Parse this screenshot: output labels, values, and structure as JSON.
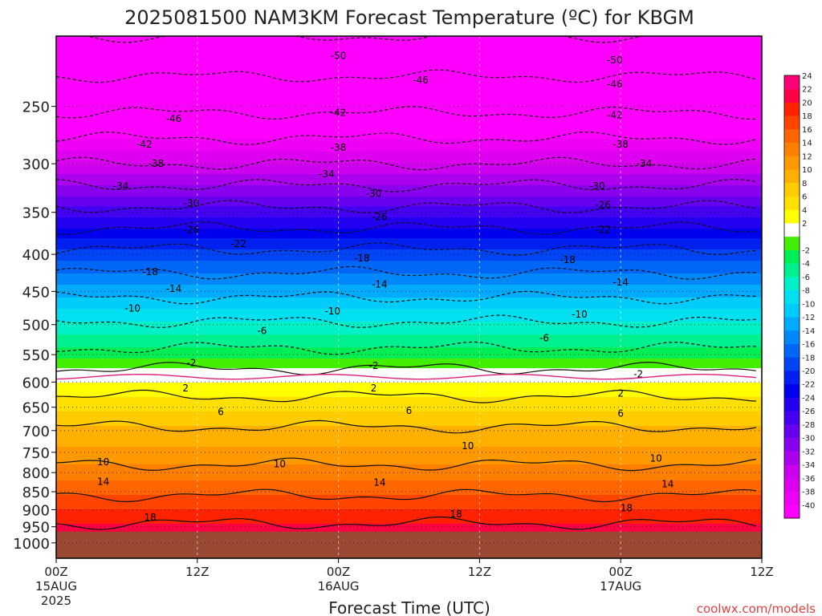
{
  "chart_data": {
    "type": "heatmap",
    "title": "2025081500 NAM3KM Forecast Temperature (ºC) for KBGM",
    "xlabel": "Forecast Time (UTC)",
    "x_ticks": [
      {
        "hours": 0,
        "label": "00Z",
        "date": "15AUG",
        "year": "2025"
      },
      {
        "hours": 12,
        "label": "12Z"
      },
      {
        "hours": 24,
        "label": "00Z",
        "date": "16AUG"
      },
      {
        "hours": 36,
        "label": "12Z"
      },
      {
        "hours": 48,
        "label": "00Z",
        "date": "17AUG"
      },
      {
        "hours": 60,
        "label": "12Z"
      }
    ],
    "xlim": [
      0,
      60
    ],
    "y_scale": "log-pressure",
    "ylim": [
      1050,
      200
    ],
    "y_ticks": [
      250,
      300,
      350,
      400,
      450,
      500,
      550,
      600,
      650,
      700,
      750,
      800,
      850,
      900,
      950,
      1000
    ],
    "surface_pressure": 965,
    "colorbar": {
      "levels": [
        -40,
        -38,
        -36,
        -34,
        -32,
        -30,
        -28,
        -26,
        -24,
        -22,
        -20,
        -18,
        -16,
        -14,
        -12,
        -10,
        -8,
        -6,
        -4,
        -2,
        0,
        2,
        4,
        6,
        8,
        10,
        12,
        14,
        16,
        18,
        20,
        22,
        24
      ],
      "labels": [
        "-40",
        "-38",
        "-36",
        "-34",
        "-32",
        "-30",
        "-28",
        "-26",
        "-24",
        "-22",
        "-20",
        "-18",
        "-16",
        "-14",
        "-12",
        "-10",
        "-8",
        "-6",
        "-4",
        "-2",
        "2",
        "4",
        "6",
        "8",
        "10",
        "12",
        "14",
        "16",
        "18",
        "20",
        "22",
        "24"
      ],
      "colors": [
        "#ff00ff",
        "#ee00f4",
        "#dd00f0",
        "#cc00ee",
        "#aa00ee",
        "#8800ee",
        "#6600ee",
        "#4400f0",
        "#2200f0",
        "#0000ee",
        "#0020f0",
        "#0044f4",
        "#0066f8",
        "#0088fa",
        "#00aafc",
        "#00ccfc",
        "#00e0f0",
        "#00f0c8",
        "#00f090",
        "#00ee55",
        "#44ee00",
        "#ffffff",
        "#ffff00",
        "#ffe000",
        "#ffcc00",
        "#ffb000",
        "#ff9900",
        "#ff8000",
        "#ff6600",
        "#ff4400",
        "#ff2200",
        "#ff0044",
        "#ff0077"
      ]
    },
    "temperature_profile": [
      {
        "p": 200,
        "t": -52
      },
      {
        "p": 250,
        "t": -45
      },
      {
        "p": 300,
        "t": -36
      },
      {
        "p": 350,
        "t": -27
      },
      {
        "p": 400,
        "t": -19
      },
      {
        "p": 450,
        "t": -13
      },
      {
        "p": 500,
        "t": -7.5
      },
      {
        "p": 550,
        "t": -3
      },
      {
        "p": 575,
        "t": 0
      },
      {
        "p": 600,
        "t": 2
      },
      {
        "p": 650,
        "t": 5.5
      },
      {
        "p": 700,
        "t": 8.5
      },
      {
        "p": 750,
        "t": 10.5
      },
      {
        "p": 800,
        "t": 13
      },
      {
        "p": 850,
        "t": 15.5
      },
      {
        "p": 900,
        "t": 18
      },
      {
        "p": 950,
        "t": 20.5
      },
      {
        "p": 1000,
        "t": 23
      }
    ],
    "contour_labels": [
      {
        "text": "-50",
        "hours": 24,
        "p": 213
      },
      {
        "text": "-50",
        "hours": 47.5,
        "p": 216
      },
      {
        "text": "-46",
        "hours": 31,
        "p": 230
      },
      {
        "text": "-46",
        "hours": 47.5,
        "p": 233
      },
      {
        "text": "-46",
        "hours": 10,
        "p": 260
      },
      {
        "text": "-42",
        "hours": 24,
        "p": 255
      },
      {
        "text": "-42",
        "hours": 47.5,
        "p": 257
      },
      {
        "text": "-42",
        "hours": 7.5,
        "p": 282
      },
      {
        "text": "-38",
        "hours": 24,
        "p": 285
      },
      {
        "text": "-38",
        "hours": 48,
        "p": 282
      },
      {
        "text": "-38",
        "hours": 8.5,
        "p": 300
      },
      {
        "text": "-34",
        "hours": 23,
        "p": 310
      },
      {
        "text": "-34",
        "hours": 50,
        "p": 300
      },
      {
        "text": "-34",
        "hours": 5.5,
        "p": 322
      },
      {
        "text": "-30",
        "hours": 27,
        "p": 330
      },
      {
        "text": "-30",
        "hours": 46,
        "p": 322
      },
      {
        "text": "-30",
        "hours": 11.5,
        "p": 340
      },
      {
        "text": "-26",
        "hours": 27.5,
        "p": 355
      },
      {
        "text": "-26",
        "hours": 46.5,
        "p": 342
      },
      {
        "text": "-26",
        "hours": 11.5,
        "p": 370
      },
      {
        "text": "-22",
        "hours": 46.5,
        "p": 370
      },
      {
        "text": "-22",
        "hours": 15.5,
        "p": 387
      },
      {
        "text": "-18",
        "hours": 26,
        "p": 405
      },
      {
        "text": "-18",
        "hours": 43.5,
        "p": 407
      },
      {
        "text": "-18",
        "hours": 8,
        "p": 423
      },
      {
        "text": "-14",
        "hours": 27.5,
        "p": 440
      },
      {
        "text": "-14",
        "hours": 48,
        "p": 437
      },
      {
        "text": "-14",
        "hours": 10,
        "p": 446
      },
      {
        "text": "-10",
        "hours": 6.5,
        "p": 475
      },
      {
        "text": "-10",
        "hours": 23.5,
        "p": 479
      },
      {
        "text": "-10",
        "hours": 44.5,
        "p": 484
      },
      {
        "text": "-6",
        "hours": 17.5,
        "p": 510
      },
      {
        "text": "-6",
        "hours": 41.5,
        "p": 522
      },
      {
        "text": "-2",
        "hours": 11.5,
        "p": 565
      },
      {
        "text": "-2",
        "hours": 27,
        "p": 570
      },
      {
        "text": "-2",
        "hours": 49.5,
        "p": 585
      },
      {
        "text": "2",
        "hours": 11,
        "p": 612
      },
      {
        "text": "2",
        "hours": 27,
        "p": 612
      },
      {
        "text": "2",
        "hours": 48,
        "p": 622
      },
      {
        "text": "6",
        "hours": 14,
        "p": 660
      },
      {
        "text": "6",
        "hours": 30,
        "p": 657
      },
      {
        "text": "6",
        "hours": 48,
        "p": 663
      },
      {
        "text": "10",
        "hours": 35,
        "p": 735
      },
      {
        "text": "10",
        "hours": 4,
        "p": 773
      },
      {
        "text": "10",
        "hours": 19,
        "p": 778
      },
      {
        "text": "10",
        "hours": 51,
        "p": 765
      },
      {
        "text": "14",
        "hours": 4,
        "p": 823
      },
      {
        "text": "14",
        "hours": 27.5,
        "p": 825
      },
      {
        "text": "14",
        "hours": 52,
        "p": 830
      },
      {
        "text": "18",
        "hours": 8,
        "p": 922
      },
      {
        "text": "18",
        "hours": 34,
        "p": 913
      },
      {
        "text": "18",
        "hours": 48.5,
        "p": 895
      }
    ],
    "watermark": "coolwx.com/models"
  }
}
